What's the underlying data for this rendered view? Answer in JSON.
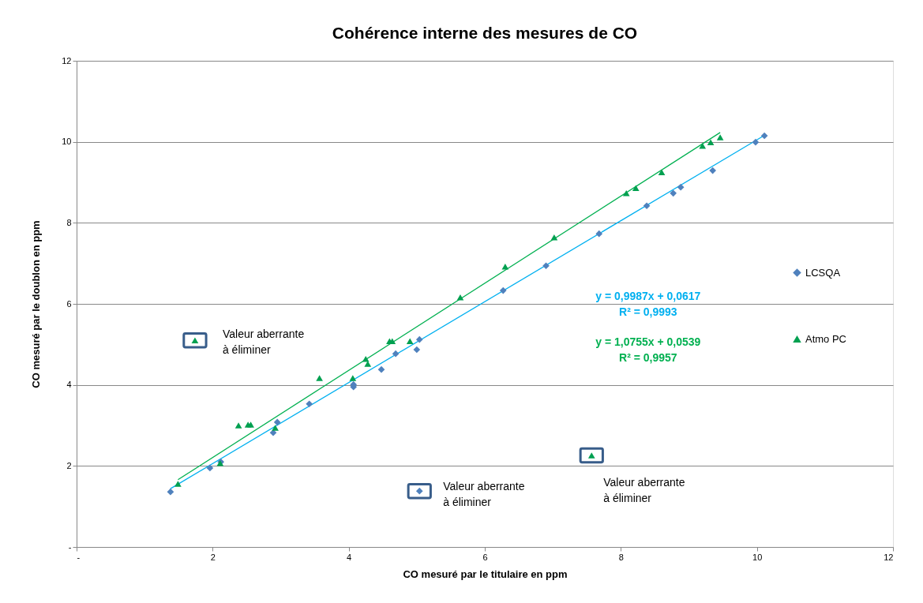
{
  "chart_data": {
    "type": "scatter",
    "title": "Cohérence interne des mesures de CO",
    "xlabel": "CO mesuré par le titulaire en ppm",
    "ylabel": "CO mesuré par le doublon en ppm",
    "xlim": [
      0,
      12
    ],
    "ylim": [
      0,
      12
    ],
    "xticks": [
      {
        "value": 0,
        "label": "-"
      },
      2,
      4,
      6,
      8,
      10,
      12
    ],
    "yticks": [
      {
        "value": 0,
        "label": "-"
      },
      2,
      4,
      6,
      8,
      10,
      12
    ],
    "grid": "y",
    "legend": "right",
    "series": [
      {
        "name": "LCSQA",
        "marker": "diamond",
        "color": "#4f81bd",
        "x": [
          1.38,
          1.96,
          2.12,
          2.89,
          2.95,
          3.42,
          4.07,
          4.07,
          4.48,
          4.69,
          5.0,
          5.04,
          6.27,
          6.9,
          7.68,
          8.38,
          8.77,
          8.88,
          9.35,
          9.98,
          10.11,
          5.04
        ],
        "values": [
          1.36,
          1.95,
          2.1,
          2.82,
          3.08,
          3.53,
          3.95,
          4.01,
          4.38,
          4.77,
          4.87,
          5.12,
          6.33,
          6.94,
          7.73,
          8.42,
          8.73,
          8.88,
          9.29,
          9.99,
          10.15,
          1.38
        ]
      },
      {
        "name": "Atmo PC",
        "marker": "triangle",
        "color": "#00a050",
        "x": [
          1.49,
          2.11,
          2.38,
          2.52,
          2.56,
          2.92,
          3.57,
          4.06,
          4.25,
          4.28,
          4.6,
          4.64,
          4.9,
          5.64,
          6.3,
          7.02,
          8.08,
          8.22,
          8.6,
          9.2,
          9.32,
          9.46,
          1.74,
          7.57
        ],
        "values": [
          1.56,
          2.07,
          3.0,
          3.02,
          3.02,
          2.94,
          4.17,
          4.17,
          4.64,
          4.52,
          5.08,
          5.08,
          5.08,
          6.16,
          6.92,
          7.64,
          8.73,
          8.86,
          9.25,
          9.9,
          9.99,
          10.11,
          5.1,
          2.26
        ]
      },
      {
        "name": "y = 0,9987x + 0,0617\nR² = 0,9993",
        "type": "line",
        "color": "#00b0f0",
        "x": [
          1.38,
          10.11
        ],
        "values": [
          1.44,
          10.16
        ]
      },
      {
        "name": "y = 1,0755x + 0,0539\nR² = 0,9957",
        "type": "line",
        "color": "#00b050",
        "x": [
          1.49,
          9.46
        ],
        "values": [
          1.66,
          10.23
        ]
      }
    ],
    "annotations": [
      {
        "text": "Valeur aberrante\nà éliminer",
        "x": 1.74,
        "y": 5.1
      },
      {
        "text": "Valeur aberrante\nà éliminer",
        "x": 5.04,
        "y": 1.38
      },
      {
        "text": "Valeur aberrante\nà éliminer",
        "x": 7.57,
        "y": 2.26
      }
    ]
  }
}
